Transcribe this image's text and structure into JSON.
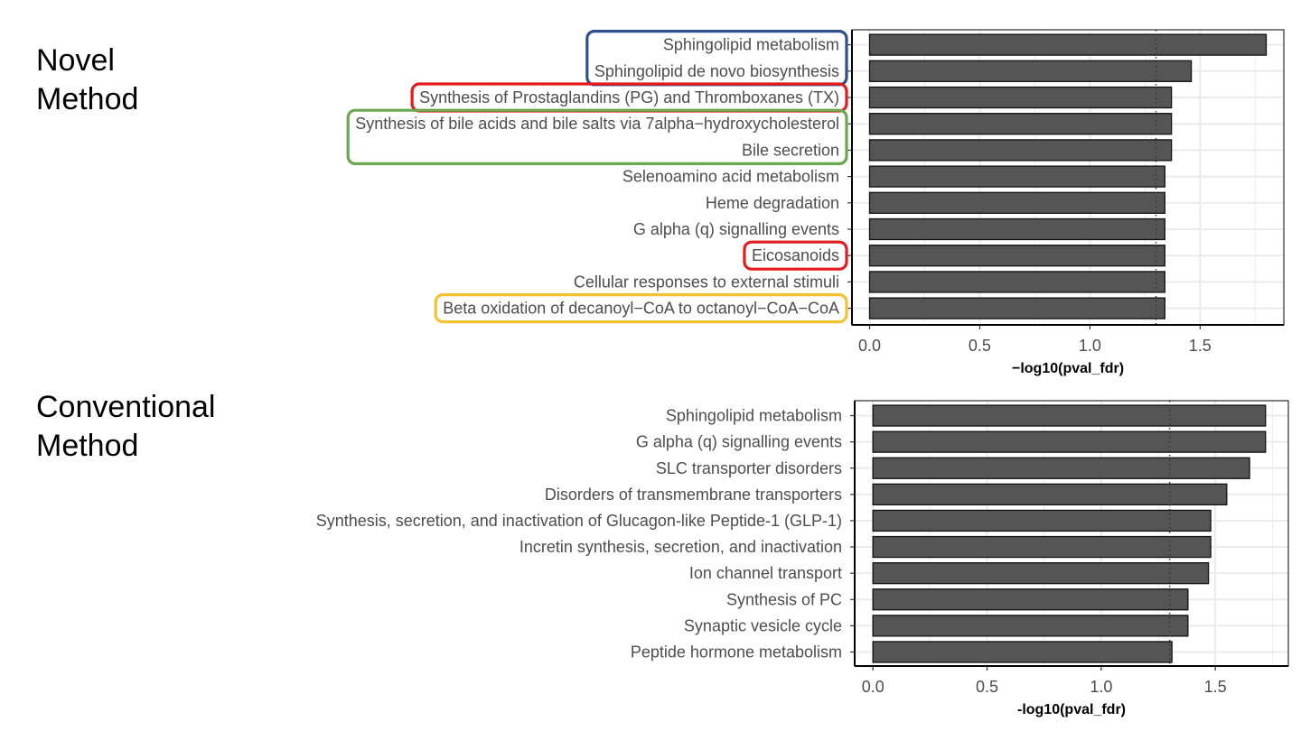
{
  "panels": {
    "novel": {
      "title_line1": "Novel",
      "title_line2": "Method"
    },
    "conventional": {
      "title_line1": "Conventional",
      "title_line2": "Method"
    }
  },
  "colors": {
    "bar_fill": "#555555",
    "bar_stroke": "#111111",
    "grid": "#ebebeb",
    "highlight_blue": "#2f4f8f",
    "highlight_red": "#e41a1c",
    "highlight_green": "#6aa84f",
    "highlight_yellow": "#f1c232"
  },
  "chart_data": [
    {
      "type": "bar",
      "orientation": "horizontal",
      "panel": "Novel Method",
      "xlabel": "−log10(pval_fdr)",
      "ylabel": "",
      "xlim": [
        -0.08,
        1.88
      ],
      "xticks": [
        0.0,
        0.5,
        1.0,
        1.5
      ],
      "xtick_labels": [
        "0.0",
        "0.5",
        "1.0",
        "1.5"
      ],
      "threshold": 1.3,
      "categories": [
        "Sphingolipid metabolism",
        "Sphingolipid de novo biosynthesis",
        "Synthesis of Prostaglandins (PG) and Thromboxanes (TX)",
        "Synthesis of bile acids and bile salts via 7alpha−hydroxycholesterol",
        "Bile secretion",
        "Selenoamino acid metabolism",
        "Heme degradation",
        "G alpha (q) signalling events",
        "Eicosanoids",
        "Cellular responses to external stimuli",
        "Beta oxidation of decanoyl−CoA to octanoyl−CoA−CoA"
      ],
      "values": [
        1.8,
        1.46,
        1.37,
        1.37,
        1.37,
        1.34,
        1.34,
        1.34,
        1.34,
        1.34,
        1.34
      ],
      "highlight_groups": [
        {
          "color": "blue",
          "rows": [
            0,
            1
          ]
        },
        {
          "color": "red",
          "rows": [
            2
          ]
        },
        {
          "color": "green",
          "rows": [
            3,
            4
          ]
        },
        {
          "color": "red",
          "rows": [
            8
          ]
        },
        {
          "color": "yellow",
          "rows": [
            10
          ]
        }
      ]
    },
    {
      "type": "bar",
      "orientation": "horizontal",
      "panel": "Conventional Method",
      "xlabel": "-log10(pval_fdr)",
      "ylabel": "",
      "xlim": [
        -0.08,
        1.82
      ],
      "xticks": [
        0.0,
        0.5,
        1.0,
        1.5
      ],
      "xtick_labels": [
        "0.0",
        "0.5",
        "1.0",
        "1.5"
      ],
      "threshold": 1.3,
      "categories": [
        "Sphingolipid metabolism",
        "G alpha (q) signalling events",
        "SLC transporter disorders",
        "Disorders of transmembrane transporters",
        "Synthesis, secretion, and inactivation of Glucagon-like Peptide-1 (GLP-1)",
        "Incretin synthesis, secretion, and inactivation",
        "Ion channel transport",
        "Synthesis of PC",
        "Synaptic vesicle cycle",
        "Peptide hormone metabolism"
      ],
      "values": [
        1.72,
        1.72,
        1.65,
        1.55,
        1.48,
        1.48,
        1.47,
        1.38,
        1.38,
        1.31
      ],
      "highlight_groups": []
    }
  ]
}
